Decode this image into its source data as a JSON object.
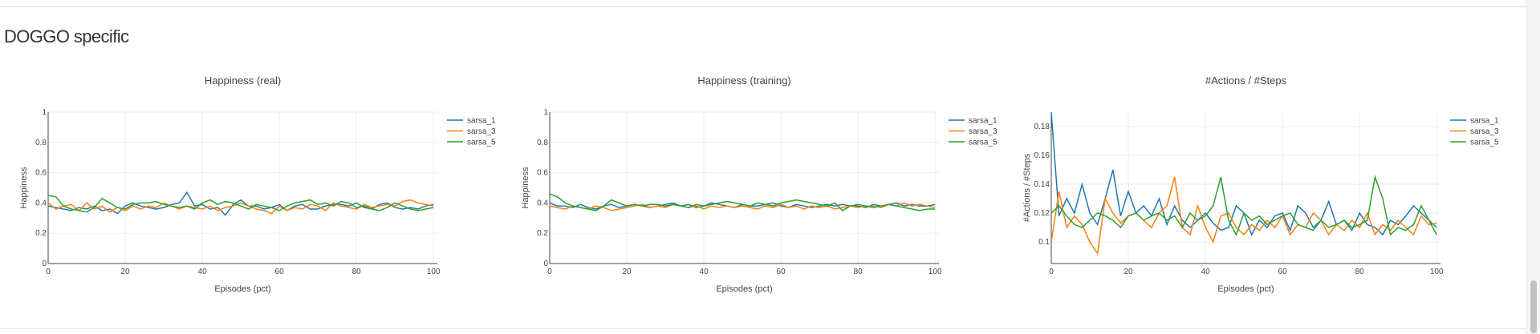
{
  "section": {
    "title": "DOGGO specific"
  },
  "colors": {
    "sarsa_1": "#1f77b4",
    "sarsa_3": "#ff7f0e",
    "sarsa_5": "#2ca02c"
  },
  "chart_data": [
    {
      "type": "line",
      "title": "Happiness (real)",
      "xlabel": "Episodes (pct)",
      "ylabel": "Happiness",
      "xlim": [
        0,
        101
      ],
      "ylim": [
        0,
        1
      ],
      "xticks": [
        0,
        20,
        40,
        60,
        80,
        100
      ],
      "yticks": [
        0,
        0.2,
        0.4,
        0.6,
        0.8,
        1
      ],
      "ytick_labels": [
        "0",
        "0.2",
        "0.4",
        "0.6",
        "0.8",
        "1"
      ],
      "grid": true,
      "legend": "top-right",
      "x_start": 0,
      "x_step": 2,
      "series": [
        {
          "name": "sarsa_1",
          "values": [
            0.38,
            0.37,
            0.36,
            0.35,
            0.37,
            0.36,
            0.38,
            0.35,
            0.36,
            0.33,
            0.38,
            0.4,
            0.38,
            0.37,
            0.36,
            0.37,
            0.39,
            0.4,
            0.47,
            0.38,
            0.39,
            0.36,
            0.37,
            0.32,
            0.39,
            0.42,
            0.38,
            0.38,
            0.36,
            0.37,
            0.39,
            0.35,
            0.38,
            0.39,
            0.36,
            0.36,
            0.38,
            0.39,
            0.39,
            0.38,
            0.4,
            0.37,
            0.36,
            0.39,
            0.4,
            0.37,
            0.36,
            0.37,
            0.36,
            0.38,
            0.39
          ]
        },
        {
          "name": "sarsa_3",
          "values": [
            0.4,
            0.36,
            0.38,
            0.39,
            0.35,
            0.4,
            0.36,
            0.38,
            0.34,
            0.37,
            0.35,
            0.38,
            0.36,
            0.38,
            0.37,
            0.4,
            0.38,
            0.36,
            0.38,
            0.37,
            0.36,
            0.38,
            0.35,
            0.37,
            0.38,
            0.4,
            0.38,
            0.36,
            0.35,
            0.33,
            0.38,
            0.35,
            0.37,
            0.36,
            0.39,
            0.38,
            0.35,
            0.4,
            0.38,
            0.37,
            0.36,
            0.39,
            0.37,
            0.38,
            0.39,
            0.38,
            0.41,
            0.42,
            0.4,
            0.39,
            0.38
          ]
        },
        {
          "name": "sarsa_5",
          "values": [
            0.45,
            0.44,
            0.38,
            0.36,
            0.35,
            0.34,
            0.37,
            0.43,
            0.4,
            0.37,
            0.36,
            0.39,
            0.4,
            0.4,
            0.41,
            0.39,
            0.38,
            0.37,
            0.38,
            0.36,
            0.4,
            0.42,
            0.39,
            0.41,
            0.4,
            0.38,
            0.36,
            0.39,
            0.38,
            0.37,
            0.35,
            0.38,
            0.4,
            0.41,
            0.42,
            0.39,
            0.4,
            0.38,
            0.41,
            0.4,
            0.37,
            0.38,
            0.36,
            0.35,
            0.37,
            0.4,
            0.38,
            0.36,
            0.35,
            0.36,
            0.37
          ]
        }
      ]
    },
    {
      "type": "line",
      "title": "Happiness (training)",
      "xlabel": "Episodes (pct)",
      "ylabel": "Happiness",
      "xlim": [
        0,
        101
      ],
      "ylim": [
        0,
        1
      ],
      "xticks": [
        0,
        20,
        40,
        60,
        80,
        100
      ],
      "yticks": [
        0,
        0.2,
        0.4,
        0.6,
        0.8,
        1
      ],
      "ytick_labels": [
        "0",
        "0.2",
        "0.4",
        "0.6",
        "0.8",
        "1"
      ],
      "grid": true,
      "legend": "top-right",
      "x_start": 0,
      "x_step": 2,
      "series": [
        {
          "name": "sarsa_1",
          "values": [
            0.4,
            0.38,
            0.38,
            0.37,
            0.39,
            0.37,
            0.36,
            0.38,
            0.39,
            0.37,
            0.38,
            0.39,
            0.38,
            0.37,
            0.38,
            0.39,
            0.4,
            0.38,
            0.39,
            0.37,
            0.38,
            0.4,
            0.39,
            0.38,
            0.37,
            0.39,
            0.38,
            0.38,
            0.39,
            0.4,
            0.38,
            0.37,
            0.39,
            0.38,
            0.37,
            0.38,
            0.39,
            0.38,
            0.39,
            0.38,
            0.38,
            0.37,
            0.39,
            0.38,
            0.39,
            0.4,
            0.38,
            0.39,
            0.38,
            0.38,
            0.39
          ]
        },
        {
          "name": "sarsa_3",
          "values": [
            0.38,
            0.37,
            0.36,
            0.38,
            0.37,
            0.36,
            0.38,
            0.37,
            0.35,
            0.36,
            0.37,
            0.38,
            0.39,
            0.37,
            0.38,
            0.37,
            0.39,
            0.38,
            0.37,
            0.38,
            0.36,
            0.38,
            0.37,
            0.38,
            0.37,
            0.38,
            0.37,
            0.36,
            0.38,
            0.37,
            0.39,
            0.37,
            0.38,
            0.36,
            0.38,
            0.37,
            0.38,
            0.36,
            0.37,
            0.38,
            0.37,
            0.38,
            0.38,
            0.37,
            0.39,
            0.38,
            0.4,
            0.38,
            0.39,
            0.38,
            0.37
          ]
        },
        {
          "name": "sarsa_5",
          "values": [
            0.46,
            0.44,
            0.4,
            0.38,
            0.37,
            0.36,
            0.35,
            0.38,
            0.42,
            0.4,
            0.38,
            0.39,
            0.38,
            0.39,
            0.39,
            0.38,
            0.39,
            0.38,
            0.37,
            0.39,
            0.38,
            0.39,
            0.4,
            0.41,
            0.4,
            0.39,
            0.38,
            0.4,
            0.39,
            0.38,
            0.4,
            0.41,
            0.42,
            0.41,
            0.4,
            0.39,
            0.38,
            0.4,
            0.35,
            0.38,
            0.39,
            0.38,
            0.37,
            0.38,
            0.39,
            0.38,
            0.37,
            0.36,
            0.35,
            0.36,
            0.36
          ]
        }
      ]
    },
    {
      "type": "line",
      "title": "#Actions / #Steps",
      "xlabel": "Episodes (pct)",
      "ylabel": "#Actions / #Steps",
      "xlim": [
        0,
        101
      ],
      "ylim": [
        0.085,
        0.19
      ],
      "xticks": [
        0,
        20,
        40,
        60,
        80,
        100
      ],
      "yticks": [
        0.1,
        0.12,
        0.14,
        0.16,
        0.18
      ],
      "ytick_labels": [
        "0.1",
        "0.12",
        "0.14",
        "0.16",
        "0.18"
      ],
      "grid": true,
      "legend": "top-right",
      "x_start": 0,
      "x_step": 2,
      "series": [
        {
          "name": "sarsa_1",
          "values": [
            0.19,
            0.118,
            0.13,
            0.12,
            0.14,
            0.12,
            0.112,
            0.13,
            0.15,
            0.118,
            0.135,
            0.12,
            0.125,
            0.118,
            0.13,
            0.112,
            0.125,
            0.115,
            0.11,
            0.115,
            0.12,
            0.113,
            0.108,
            0.11,
            0.125,
            0.12,
            0.105,
            0.115,
            0.11,
            0.118,
            0.12,
            0.108,
            0.125,
            0.12,
            0.11,
            0.115,
            0.128,
            0.112,
            0.115,
            0.108,
            0.12,
            0.112,
            0.11,
            0.105,
            0.115,
            0.112,
            0.118,
            0.125,
            0.12,
            0.115,
            0.11
          ]
        },
        {
          "name": "sarsa_3",
          "values": [
            0.1,
            0.135,
            0.11,
            0.118,
            0.112,
            0.1,
            0.092,
            0.13,
            0.12,
            0.113,
            0.118,
            0.12,
            0.115,
            0.11,
            0.12,
            0.125,
            0.145,
            0.11,
            0.105,
            0.125,
            0.11,
            0.1,
            0.118,
            0.12,
            0.11,
            0.105,
            0.112,
            0.108,
            0.115,
            0.11,
            0.118,
            0.105,
            0.112,
            0.11,
            0.12,
            0.115,
            0.105,
            0.112,
            0.108,
            0.115,
            0.11,
            0.12,
            0.105,
            0.112,
            0.108,
            0.115,
            0.11,
            0.105,
            0.118,
            0.112,
            0.113
          ]
        },
        {
          "name": "sarsa_5",
          "values": [
            0.12,
            0.125,
            0.118,
            0.112,
            0.11,
            0.115,
            0.12,
            0.118,
            0.115,
            0.11,
            0.118,
            0.12,
            0.115,
            0.118,
            0.12,
            0.115,
            0.118,
            0.11,
            0.12,
            0.115,
            0.118,
            0.125,
            0.145,
            0.115,
            0.105,
            0.12,
            0.115,
            0.118,
            0.112,
            0.115,
            0.118,
            0.12,
            0.112,
            0.11,
            0.108,
            0.115,
            0.11,
            0.112,
            0.115,
            0.11,
            0.112,
            0.115,
            0.145,
            0.13,
            0.105,
            0.11,
            0.108,
            0.112,
            0.125,
            0.115,
            0.105
          ]
        }
      ]
    }
  ]
}
